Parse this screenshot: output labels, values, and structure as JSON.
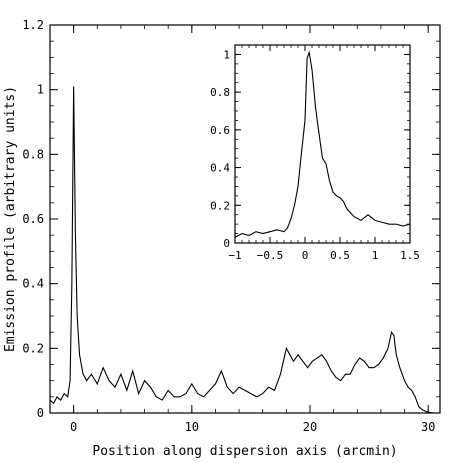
{
  "chart_data": [
    {
      "type": "line",
      "xlabel": "Position along dispersion axis (arcmin)",
      "ylabel": "Emission profile (arbitrary units)",
      "xlim": [
        -2,
        31
      ],
      "ylim": [
        0,
        1.2
      ],
      "xticks": [
        "0",
        "10",
        "20",
        "30"
      ],
      "yticks": [
        "0",
        "0.2",
        "0.4",
        "0.6",
        "0.8",
        "1",
        "1.2"
      ],
      "grid": false,
      "series": [
        {
          "x": [
            -2,
            -1.7,
            -1.4,
            -1.1,
            -0.8,
            -0.5,
            -0.3,
            -0.15,
            0,
            0.15,
            0.3,
            0.5,
            0.8,
            1.1,
            1.5,
            2,
            2.5,
            3,
            3.5,
            4,
            4.5,
            5,
            5.5,
            6,
            6.5,
            7,
            7.5,
            8,
            8.5,
            9,
            9.5,
            10,
            10.5,
            11,
            11.5,
            12,
            12.5,
            13,
            13.5,
            14,
            14.5,
            15,
            15.5,
            16,
            16.5,
            17,
            17.5,
            18,
            18.3,
            18.6,
            19,
            19.4,
            19.8,
            20.2,
            20.6,
            21,
            21.4,
            21.8,
            22.2,
            22.6,
            23,
            23.4,
            23.8,
            24.2,
            24.6,
            25,
            25.4,
            25.8,
            26.2,
            26.6,
            26.9,
            27.1,
            27.3,
            27.6,
            28,
            28.3,
            28.6,
            28.9,
            29.2,
            29.5,
            29.8,
            30,
            30.5
          ],
          "y": [
            0.04,
            0.03,
            0.05,
            0.04,
            0.06,
            0.05,
            0.1,
            0.4,
            1.01,
            0.55,
            0.3,
            0.18,
            0.12,
            0.1,
            0.12,
            0.09,
            0.14,
            0.1,
            0.08,
            0.12,
            0.07,
            0.13,
            0.06,
            0.1,
            0.08,
            0.05,
            0.04,
            0.07,
            0.05,
            0.05,
            0.06,
            0.09,
            0.06,
            0.05,
            0.07,
            0.09,
            0.13,
            0.08,
            0.06,
            0.08,
            0.07,
            0.06,
            0.05,
            0.06,
            0.08,
            0.07,
            0.12,
            0.2,
            0.18,
            0.16,
            0.18,
            0.16,
            0.14,
            0.16,
            0.17,
            0.18,
            0.16,
            0.13,
            0.11,
            0.1,
            0.12,
            0.12,
            0.15,
            0.17,
            0.16,
            0.14,
            0.14,
            0.15,
            0.17,
            0.2,
            0.25,
            0.24,
            0.18,
            0.14,
            0.1,
            0.08,
            0.07,
            0.05,
            0.02,
            0.01,
            0.005,
            0.002,
            0.0
          ]
        }
      ]
    },
    {
      "type": "line",
      "xlim": [
        -1,
        1.5
      ],
      "ylim": [
        0,
        1.05
      ],
      "xticks": [
        "−1",
        "−0.5",
        "0",
        "0.5",
        "1",
        "1.5"
      ],
      "yticks": [
        "0",
        "0.2",
        "0.4",
        "0.6",
        "0.8",
        "1"
      ],
      "grid": false,
      "series": [
        {
          "x": [
            -1,
            -0.9,
            -0.8,
            -0.7,
            -0.6,
            -0.5,
            -0.4,
            -0.3,
            -0.25,
            -0.2,
            -0.15,
            -0.1,
            -0.05,
            0,
            0.03,
            0.06,
            0.1,
            0.15,
            0.2,
            0.25,
            0.3,
            0.35,
            0.4,
            0.45,
            0.5,
            0.55,
            0.6,
            0.7,
            0.8,
            0.9,
            1,
            1.1,
            1.2,
            1.3,
            1.4,
            1.5
          ],
          "y": [
            0.03,
            0.05,
            0.04,
            0.06,
            0.05,
            0.06,
            0.07,
            0.06,
            0.08,
            0.13,
            0.2,
            0.3,
            0.48,
            0.65,
            0.98,
            1.01,
            0.92,
            0.72,
            0.58,
            0.45,
            0.42,
            0.33,
            0.27,
            0.25,
            0.24,
            0.22,
            0.18,
            0.14,
            0.12,
            0.15,
            0.12,
            0.11,
            0.1,
            0.1,
            0.09,
            0.1
          ]
        }
      ]
    }
  ]
}
